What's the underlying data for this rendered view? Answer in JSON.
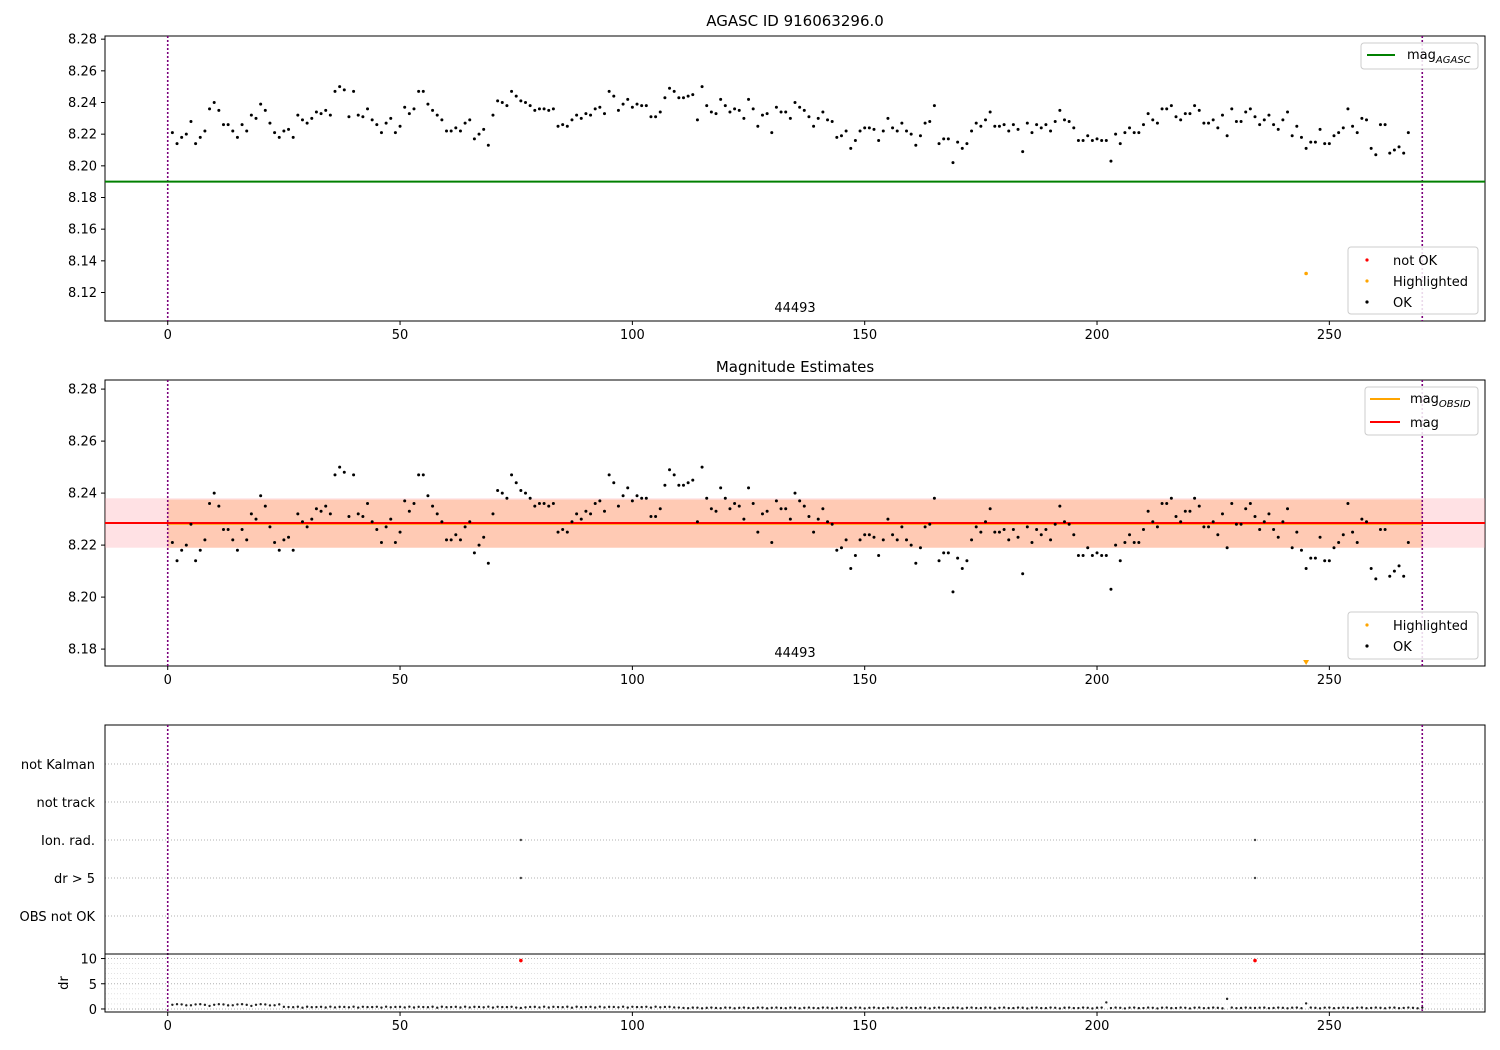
{
  "chart_data": [
    {
      "panel": "agasc",
      "type": "scatter",
      "title": "AGASC ID 916063296.0",
      "xlim": [
        -13.5,
        283.5
      ],
      "ylim": [
        8.102,
        8.282
      ],
      "xticks": [
        0,
        50,
        100,
        150,
        200,
        250,
        300
      ],
      "yticks": [
        8.12,
        8.14,
        8.16,
        8.18,
        8.2,
        8.22,
        8.24,
        8.26,
        8.28
      ],
      "ytick_labels": [
        "8.12",
        "8.14",
        "8.16",
        "8.18",
        "8.20",
        "8.22",
        "8.24",
        "8.26",
        "8.28"
      ],
      "obsid_label": "44493",
      "obsid_label_x": 135,
      "vlines": [
        0,
        270
      ],
      "mag_agasc": 8.19,
      "highlighted_points": [
        {
          "x": 245,
          "y": 8.132
        }
      ],
      "legend_top": [
        "mag_AGASC"
      ],
      "legend_bottom": [
        "not OK",
        "Highlighted",
        "OK"
      ],
      "series_note": "OK points shared with Magnitude Estimates panel (mag_ok)"
    },
    {
      "panel": "estimates",
      "type": "scatter",
      "title": "Magnitude Estimates",
      "xlim": [
        -13.5,
        283.5
      ],
      "ylim": [
        8.1735,
        8.2835
      ],
      "xticks": [
        0,
        50,
        100,
        150,
        200,
        250,
        300
      ],
      "yticks": [
        8.18,
        8.2,
        8.22,
        8.24,
        8.26,
        8.28
      ],
      "ytick_labels": [
        "8.18",
        "8.20",
        "8.22",
        "8.24",
        "8.26",
        "8.28"
      ],
      "obsid_label": "44493",
      "obsid_label_x": 135,
      "vlines": [
        0,
        270
      ],
      "mag": 8.2285,
      "mag_obsid": 8.2282,
      "band_mag": [
        8.219,
        8.238
      ],
      "band_obsid": [
        8.219,
        8.2375
      ],
      "highlighted_points": [
        {
          "x": 245,
          "y": 8.1745
        }
      ],
      "legend_top": [
        "mag_OBSID",
        "mag"
      ],
      "legend_bottom": [
        "Highlighted",
        "OK"
      ],
      "mag_ok": [
        8.221,
        8.214,
        8.218,
        8.22,
        8.228,
        8.214,
        8.218,
        8.222,
        8.236,
        8.24,
        8.235,
        8.226,
        8.226,
        8.222,
        8.218,
        8.226,
        8.222,
        8.232,
        8.23,
        8.239,
        8.235,
        8.227,
        8.221,
        8.218,
        8.222,
        8.223,
        8.218,
        8.232,
        8.229,
        8.227,
        8.23,
        8.234,
        8.233,
        8.235,
        8.232,
        8.247,
        8.25,
        8.248,
        8.231,
        8.247,
        8.232,
        8.231,
        8.236,
        8.229,
        8.226,
        8.221,
        8.227,
        8.23,
        8.221,
        8.225,
        8.237,
        8.233,
        8.236,
        8.247,
        8.247,
        8.239,
        8.235,
        8.232,
        8.229,
        8.222,
        8.222,
        8.224,
        8.222,
        8.227,
        8.229,
        8.217,
        8.22,
        8.223,
        8.213,
        8.232,
        8.241,
        8.24,
        8.238,
        8.247,
        8.244,
        8.241,
        8.24,
        8.238,
        8.235,
        8.236,
        8.236,
        8.235,
        8.236,
        8.225,
        8.226,
        8.225,
        8.229,
        8.232,
        8.23,
        8.233,
        8.232,
        8.236,
        8.237,
        8.233,
        8.247,
        8.244,
        8.235,
        8.239,
        8.242,
        8.237,
        8.239,
        8.238,
        8.238,
        8.231,
        8.231,
        8.234,
        8.243,
        8.249,
        8.247,
        8.243,
        8.243,
        8.244,
        8.245,
        8.229,
        8.25,
        8.238,
        8.234,
        8.233,
        8.242,
        8.238,
        8.234,
        8.236,
        8.235,
        8.23,
        8.242,
        8.236,
        8.225,
        8.232,
        8.233,
        8.221,
        8.237,
        8.234,
        8.234,
        8.23,
        8.24,
        8.237,
        8.235,
        8.231,
        8.225,
        8.23,
        8.234,
        8.229,
        8.228,
        8.218,
        8.219,
        8.222,
        8.211,
        8.216,
        8.222,
        8.224,
        8.224,
        8.223,
        8.216,
        8.222,
        8.23,
        8.224,
        8.222,
        8.227,
        8.222,
        8.22,
        8.213,
        8.219,
        8.227,
        8.228,
        8.238,
        8.214,
        8.217,
        8.217,
        8.202,
        8.215,
        8.211,
        8.214,
        8.222,
        8.227,
        8.225,
        8.229,
        8.234,
        8.225,
        8.225,
        8.226,
        8.222,
        8.226,
        8.223,
        8.209,
        8.227,
        8.221,
        8.226,
        8.224,
        8.226,
        8.222,
        8.228,
        8.235,
        8.229,
        8.228,
        8.224,
        8.216,
        8.216,
        8.219,
        8.216,
        8.217,
        8.216,
        8.216,
        8.203,
        8.22,
        8.214,
        8.221,
        8.224,
        8.221,
        8.221,
        8.226,
        8.233,
        8.229,
        8.227,
        8.236,
        8.236,
        8.238,
        8.231,
        8.229,
        8.233,
        8.233,
        8.238,
        8.235,
        8.227,
        8.227,
        8.229,
        8.224,
        8.232,
        8.219,
        8.236,
        8.228,
        8.228,
        8.234,
        8.236,
        8.231,
        8.226,
        8.229,
        8.232,
        8.226,
        8.223,
        8.229,
        8.234,
        8.219,
        8.225,
        8.218,
        8.211,
        8.215,
        8.215,
        8.223,
        8.214,
        8.214,
        8.219,
        8.221,
        8.224,
        8.236,
        8.225,
        8.221,
        8.23,
        8.229,
        8.211,
        8.207,
        8.226,
        8.226,
        8.208,
        8.21,
        8.212,
        8.208,
        8.221
      ]
    },
    {
      "panel": "flags",
      "type": "scatter",
      "xlim": [
        -13.5,
        283.5
      ],
      "categories": [
        "OBS not OK",
        "dr > 5",
        "Ion. rad.",
        "not track",
        "not Kalman"
      ],
      "vlines": [
        0,
        270
      ],
      "points": [
        {
          "x": 76,
          "category": "dr > 5"
        },
        {
          "x": 76,
          "category": "Ion. rad."
        },
        {
          "x": 234,
          "category": "dr > 5"
        },
        {
          "x": 234,
          "category": "Ion. rad."
        }
      ]
    },
    {
      "panel": "dr",
      "type": "scatter",
      "ylabel": "dr",
      "xlim": [
        -13.5,
        283.5
      ],
      "ylim": [
        -0.6,
        10.9
      ],
      "xticks": [
        0,
        50,
        100,
        150,
        200,
        250,
        300
      ],
      "yticks": [
        0,
        5,
        10
      ],
      "ytick_labels": [
        "0",
        "5",
        "10"
      ],
      "vlines": [
        0,
        270
      ],
      "flagged_points": [
        {
          "x": 76,
          "y": 9.6
        },
        {
          "x": 234,
          "y": 9.6
        }
      ],
      "spikes": [
        {
          "x": 202,
          "y": 1.3
        },
        {
          "x": 228,
          "y": 2.0
        },
        {
          "x": 245,
          "y": 1.1
        }
      ]
    }
  ],
  "colors": {
    "ok": "#000000",
    "not_ok": "#ff0000",
    "highlighted": "#ffa500",
    "mag_agasc": "#008000",
    "mag": "#ff0000",
    "mag_obsid": "#ffa500",
    "band_mag": "#ff9aa5",
    "band_obsid": "#ffb07a",
    "vline": "#7b007b"
  }
}
